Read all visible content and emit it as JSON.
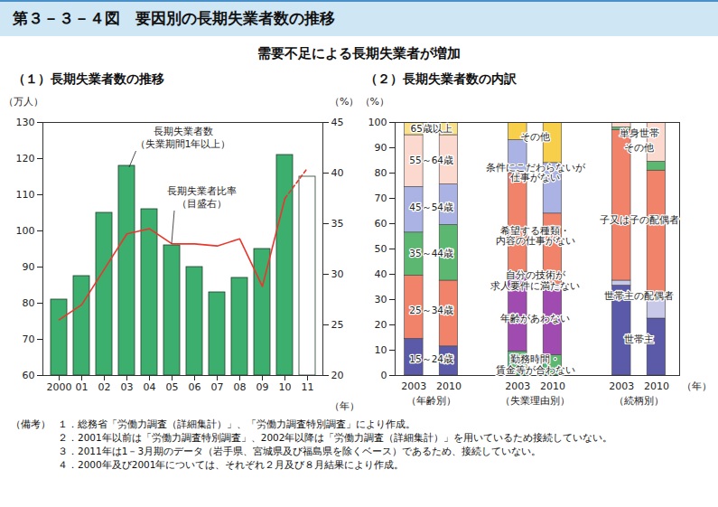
{
  "title": "第３－３－４図　要因別の長期失業者数の推移",
  "subtitle": "需要不足による長期失業者が増加",
  "chart_data": [
    {
      "type": "bar",
      "title": "（１）長期失業者数の推移",
      "categories": [
        "2000",
        "01",
        "02",
        "03",
        "04",
        "05",
        "06",
        "07",
        "08",
        "09",
        "10",
        "11"
      ],
      "x_label": "（年）",
      "y_label": "（万人）",
      "ylim": [
        60,
        130
      ],
      "yticks": [
        60,
        70,
        80,
        90,
        100,
        110,
        120,
        130
      ],
      "y2_label": "（%）",
      "y2lim": [
        20,
        45
      ],
      "y2ticks": [
        20,
        25,
        30,
        35,
        40,
        45
      ],
      "series": [
        {
          "name": "長期失業者数（失業期間1年以上）",
          "type": "bar",
          "color": "#3cae6e",
          "colors": [
            "#3cae6e",
            "#3cae6e",
            "#3cae6e",
            "#3cae6e",
            "#3cae6e",
            "#3cae6e",
            "#3cae6e",
            "#3cae6e",
            "#3cae6e",
            "#3cae6e",
            "#3cae6e",
            "#ffffff"
          ],
          "values": [
            81,
            87.5,
            105,
            118,
            106,
            96,
            90,
            83,
            87,
            95,
            121,
            115
          ]
        },
        {
          "name": "長期失業者比率（目盛右）",
          "type": "line",
          "axis": "y2",
          "color": "#e8382e",
          "line_style": "solid",
          "values": [
            25.5,
            27,
            30.5,
            34,
            34.5,
            33,
            33,
            32.8,
            33.5,
            28.8,
            37.5,
            null
          ]
        },
        {
          "type": "line",
          "axis": "y2",
          "color": "#e8382e",
          "line_style": "dashed",
          "values": [
            null,
            null,
            null,
            null,
            null,
            null,
            null,
            null,
            null,
            null,
            37.5,
            40.5
          ]
        }
      ]
    },
    {
      "type": "bar",
      "stacked": true,
      "title": "（２）長期失業者数の内訳",
      "y_label": "（%）",
      "x_label": "（年）",
      "ylim": [
        0,
        100
      ],
      "yticks": [
        0,
        10,
        20,
        30,
        40,
        50,
        60,
        70,
        80,
        90,
        100
      ],
      "groups": [
        {
          "name": "（年齢別）",
          "categories": [
            "2003",
            "2010"
          ],
          "series": [
            {
              "name": "15～24歳",
              "color": "#5a5aa8",
              "values": [
                14.5,
                11.5
              ]
            },
            {
              "name": "25～34歳",
              "color": "#f0836a",
              "values": [
                25,
                26
              ]
            },
            {
              "name": "35～44歳",
              "color": "#5cb870",
              "values": [
                17,
                22
              ]
            },
            {
              "name": "45～54歳",
              "color": "#aab3e3",
              "values": [
                18,
                16
              ]
            },
            {
              "name": "55～64歳",
              "color": "#fcd9cf",
              "values": [
                20.5,
                19.5
              ]
            },
            {
              "name": "65歳以上",
              "color": "#f9e08a",
              "values": [
                5,
                5
              ]
            }
          ]
        },
        {
          "name": "（失業理由別）",
          "categories": [
            "2003",
            "2010"
          ],
          "series": [
            {
              "name": "勤務時間・賃金等が合わない",
              "color": "#5cb870",
              "values": [
                9.5,
                8
              ]
            },
            {
              "name": "年齢があわない",
              "color": "#a04bb0",
              "values": [
                30,
                26
              ]
            },
            {
              "name": "自分の技術が求人要件に満たない",
              "color": "#ecd8e8",
              "values": [
                1.5,
                2
              ]
            },
            {
              "name": "希望する種類・内容の仕事がない",
              "color": "#f0836a",
              "values": [
                39,
                28
              ]
            },
            {
              "name": "条件にこだわらないが仕事がない",
              "color": "#aab3e3",
              "values": [
                13,
                20
              ]
            },
            {
              "name": "その他",
              "color": "#f7cf4a",
              "values": [
                7,
                16
              ]
            }
          ]
        },
        {
          "name": "（続柄別）",
          "categories": [
            "2003",
            "2010"
          ],
          "series": [
            {
              "name": "世帯主",
              "color": "#5a5aa8",
              "values": [
                35.5,
                22.5
              ]
            },
            {
              "name": "世帯主の配偶者",
              "color": "#c8c8e8",
              "values": [
                2,
                7.5
              ]
            },
            {
              "name": "子又は子の配偶者",
              "color": "#f0836a",
              "values": [
                59.5,
                51
              ]
            },
            {
              "name": "その他",
              "color": "#5cb870",
              "values": [
                1,
                3.5
              ]
            },
            {
              "name": "単身世帯",
              "color": "#fcd9cf",
              "values": [
                2,
                15.5
              ]
            }
          ]
        }
      ]
    }
  ],
  "notes": {
    "label": "（備考）",
    "items": [
      "１．総務省「労働力調査（詳細集計）」、「労働力調査特別調査」により作成。",
      "２．2001年以前は「労働力調査特別調査」、2002年以降は「労働力調査（詳細集計）」を用いているため接続していない。",
      "３．2011年は1－3月期のデータ（岩手県、宮城県及び福島県を除くベース）であるため、接続していない。",
      "４．2000年及び2001年については、それぞれ２月及び８月結果により作成。"
    ]
  }
}
